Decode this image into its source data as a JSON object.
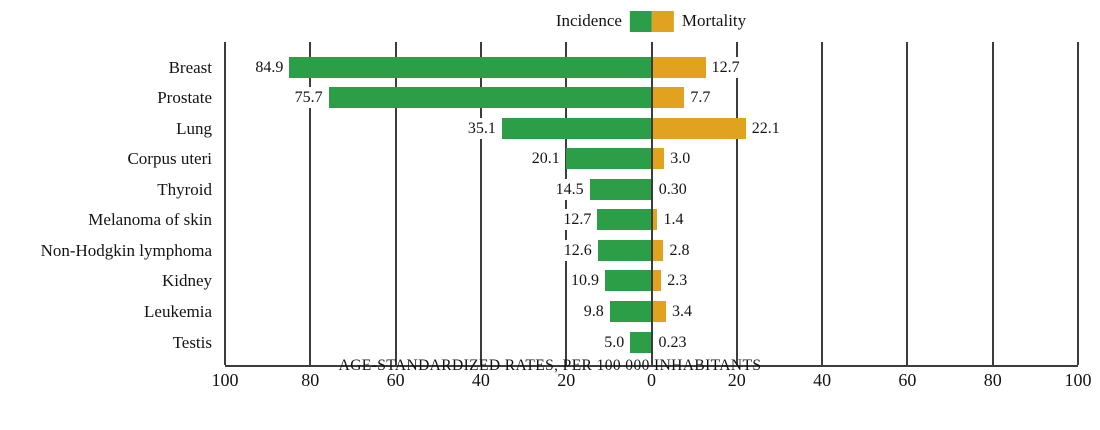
{
  "legend": {
    "incidence_label": "Incidence",
    "mortality_label": "Mortality"
  },
  "colors": {
    "incidence": "#2d9e48",
    "mortality": "#e0a21f",
    "gridline": "#3c3c3c",
    "text": "#141414"
  },
  "axis": {
    "title": "AGE-STANDARDIZED RATES,  PER 100 000 INHABITANTS",
    "max": 100,
    "tick_labels": [
      "100",
      "80",
      "60",
      "40",
      "20",
      "0",
      "20",
      "40",
      "60",
      "80",
      "100"
    ]
  },
  "chart_data": {
    "type": "bar",
    "orientation": "horizontal-diverging",
    "title": "",
    "xlabel": "AGE-STANDARDIZED RATES,  PER 100 000 INHABITANTS",
    "ylabel": "",
    "xlim_left_side": [
      100,
      0
    ],
    "xlim_right_side": [
      0,
      100
    ],
    "grid": true,
    "legend_position": "top-center",
    "categories": [
      "Breast",
      "Prostate",
      "Lung",
      "Corpus uteri",
      "Thyroid",
      "Melanoma of skin",
      "Non-Hodgkin lymphoma",
      "Kidney",
      "Leukemia",
      "Testis"
    ],
    "series": [
      {
        "name": "Incidence",
        "direction": "left",
        "values": [
          84.9,
          75.7,
          35.1,
          20.1,
          14.5,
          12.7,
          12.6,
          10.9,
          9.8,
          5.0
        ]
      },
      {
        "name": "Mortality",
        "direction": "right",
        "values": [
          12.7,
          7.7,
          22.1,
          3.0,
          0.3,
          1.4,
          2.8,
          2.3,
          3.4,
          0.23
        ]
      }
    ],
    "value_labels": {
      "incidence": [
        "84.9",
        "75.7",
        "35.1",
        "20.1",
        "14.5",
        "12.7",
        "12.6",
        "10.9",
        "9.8",
        "5.0"
      ],
      "mortality": [
        "12.7",
        "7.7",
        "22.1",
        "3.0",
        "0.30",
        "1.4",
        "2.8",
        "2.3",
        "3.4",
        "0.23"
      ]
    }
  }
}
